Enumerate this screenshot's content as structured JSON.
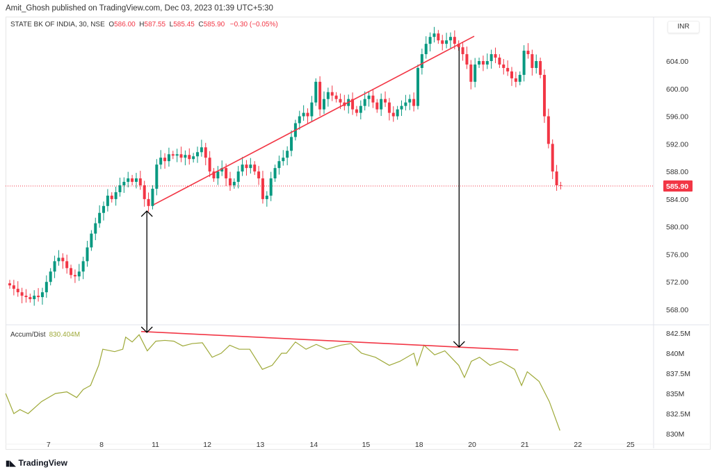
{
  "header": {
    "published": "Amit_Ghosh published on TradingView.com, Dec 03, 2023 01:39 UTC+5:30"
  },
  "legend": {
    "symbol": "STATE BK OF INDIA, 30, NSE",
    "o_label": "O",
    "o": "586.00",
    "h_label": "H",
    "h": "587.55",
    "l_label": "L",
    "l": "585.45",
    "c_label": "C",
    "c": "585.90",
    "change": "−0.30 (−0.05%)"
  },
  "currency": "INR",
  "indicator": {
    "name": "Accum/Dist",
    "value": "830.404M"
  },
  "footer": {
    "brand": "TradingView"
  },
  "colors": {
    "up": "#089981",
    "down": "#f23645",
    "ad_line": "#9ea938",
    "trend": "#f23645"
  },
  "chart_data": [
    {
      "type": "candlestick",
      "title": "STATE BK OF INDIA, 30, NSE",
      "ylim": [
        565,
        608
      ],
      "y_ticks": [
        "604.00",
        "600.00",
        "596.00",
        "592.00",
        "588.00",
        "584.00",
        "580.00",
        "576.00",
        "572.00",
        "568.00"
      ],
      "y_tick_values": [
        604,
        600,
        596,
        592,
        588,
        584,
        580,
        576,
        572,
        568
      ],
      "last_price": 585.9,
      "last_price_label": "585.90",
      "x_ticks": [
        "7",
        "8",
        "11",
        "12",
        "13",
        "14",
        "15",
        "18",
        "20",
        "21",
        "22",
        "25"
      ],
      "x_tick_index": [
        9.5,
        22.5,
        35.7,
        48.4,
        61.4,
        74.5,
        87.3,
        100.3,
        113.3,
        126.2,
        139.2,
        152.1
      ],
      "closes": [
        571.5,
        571,
        570.5,
        570,
        569.8,
        569.5,
        570,
        569.8,
        570.5,
        572,
        573.5,
        575,
        575.5,
        575,
        574,
        573,
        572.8,
        573.5,
        575,
        577,
        579,
        580.5,
        582,
        583,
        584.5,
        584,
        585,
        586,
        586.5,
        587,
        586.5,
        587,
        586,
        584,
        583,
        585.5,
        589,
        590,
        589.5,
        590.5,
        590.3,
        590.5,
        590,
        590.4,
        589.8,
        590.2,
        590.8,
        591.5,
        590,
        588,
        587,
        588,
        588.5,
        587,
        586,
        586.5,
        588,
        589,
        588.5,
        589,
        588,
        587,
        584,
        584.5,
        587,
        588.5,
        589.5,
        590,
        591,
        593,
        595,
        596,
        596.5,
        596,
        598,
        601,
        597,
        598.5,
        599.5,
        599,
        598.5,
        598,
        597.5,
        598.5,
        597,
        596.5,
        597.5,
        598.5,
        599,
        598,
        597,
        598.5,
        598,
        596.5,
        596,
        597,
        597.5,
        598,
        598.5,
        597.5,
        603,
        605,
        606.5,
        607.5,
        608,
        607,
        606.5,
        607,
        607.5,
        606.5,
        606,
        605,
        603.5,
        601,
        603.5,
        604,
        603.5,
        604,
        605,
        604.5,
        603.5,
        603,
        602.5,
        601.5,
        601,
        602,
        605.5,
        605,
        603,
        604,
        602,
        596,
        592,
        588,
        586,
        585.9
      ],
      "trendline": {
        "from": {
          "index": 35.3,
          "price": 583.2
        },
        "to": {
          "index": 113.8,
          "price": 607.6
        }
      },
      "arrows": [
        {
          "index": 33.6,
          "direction": "both"
        },
        {
          "index": 110.1,
          "direction": "down"
        }
      ]
    },
    {
      "type": "line",
      "title": "Accum/Dist",
      "ylim": [
        829,
        843.5
      ],
      "y_ticks": [
        "842.5M",
        "840M",
        "837.5M",
        "835M",
        "832.5M",
        "830M"
      ],
      "y_tick_values": [
        842.5,
        840,
        837.5,
        835,
        832.5,
        830
      ],
      "points": [
        [
          -1,
          835
        ],
        [
          1,
          832.5
        ],
        [
          2.5,
          833
        ],
        [
          4.5,
          832.5
        ],
        [
          7.8,
          834
        ],
        [
          11.2,
          835
        ],
        [
          14,
          835.2
        ],
        [
          16.4,
          834.5
        ],
        [
          18,
          835.5
        ],
        [
          19.8,
          836
        ],
        [
          21.8,
          838.5
        ],
        [
          22.8,
          840.5
        ],
        [
          25.7,
          840.2
        ],
        [
          27.7,
          840.5
        ],
        [
          28.4,
          842
        ],
        [
          30,
          841.4
        ],
        [
          31.7,
          842.3
        ],
        [
          33.7,
          840.3
        ],
        [
          35.8,
          841.5
        ],
        [
          38,
          841.6
        ],
        [
          40.2,
          841.5
        ],
        [
          42.4,
          840.9
        ],
        [
          44.7,
          841.2
        ],
        [
          47.2,
          841.3
        ],
        [
          49.6,
          839.5
        ],
        [
          51.8,
          840
        ],
        [
          53.9,
          841
        ],
        [
          56.2,
          840.5
        ],
        [
          58.8,
          840.5
        ],
        [
          61.9,
          838
        ],
        [
          64.3,
          838.5
        ],
        [
          66.6,
          840
        ],
        [
          67.8,
          840
        ],
        [
          70,
          841.4
        ],
        [
          72.6,
          840.5
        ],
        [
          75.1,
          841.1
        ],
        [
          77.7,
          840.5
        ],
        [
          81.1,
          841
        ],
        [
          83.6,
          841.2
        ],
        [
          86.2,
          840
        ],
        [
          89.6,
          839.5
        ],
        [
          93,
          838.5
        ],
        [
          95.6,
          839
        ],
        [
          99,
          840
        ],
        [
          99.8,
          838.5
        ],
        [
          101.5,
          841
        ],
        [
          104.1,
          839.8
        ],
        [
          106.6,
          840.3
        ],
        [
          110,
          838.5
        ],
        [
          111.4,
          837
        ],
        [
          113.1,
          839
        ],
        [
          115.1,
          839.5
        ],
        [
          117.7,
          838.5
        ],
        [
          120.3,
          839
        ],
        [
          123.7,
          838
        ],
        [
          125.4,
          836
        ],
        [
          126.8,
          837.7
        ],
        [
          129.7,
          836.5
        ],
        [
          132.2,
          834
        ],
        [
          134.8,
          830.4
        ]
      ],
      "trendline": {
        "from": {
          "index": 32.2,
          "value": 842.7
        },
        "to": {
          "index": 124.6,
          "value": 840.4
        }
      }
    }
  ]
}
